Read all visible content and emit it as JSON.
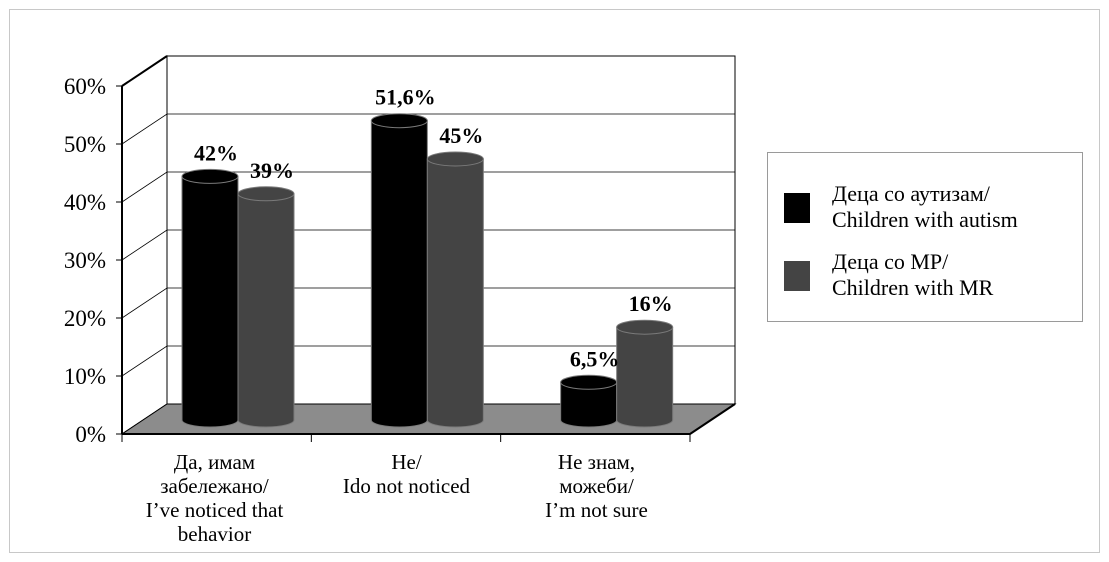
{
  "chart_data": {
    "type": "bar",
    "title": "",
    "xlabel": "",
    "ylabel": "",
    "ylim": [
      0,
      60
    ],
    "yticks": [
      "0%",
      "10%",
      "20%",
      "30%",
      "40%",
      "50%",
      "60%"
    ],
    "grid": true,
    "legend_position": "right",
    "categories": [
      "Да, имам\nзабележано/\nI’ve noticed that\nbehavior",
      "Не/\nIdo not noticed",
      "Не знам,\nможеби/\nI’m not sure"
    ],
    "series": [
      {
        "name": "Деца со аутизам/\nChildren with autism",
        "color": "#000000",
        "values": [
          42,
          51.6,
          6.5
        ],
        "labels": [
          "42%",
          "51,6%",
          "6,5%"
        ]
      },
      {
        "name": "Деца со МР/\nChildren with MR",
        "color": "#444444",
        "values": [
          39,
          45,
          16
        ],
        "labels": [
          "39%",
          "45%",
          "16%"
        ]
      }
    ]
  },
  "colors": {
    "floor": "#8c8c8c",
    "grid": "#000000",
    "series_1": "#000000",
    "series_2": "#444444"
  }
}
